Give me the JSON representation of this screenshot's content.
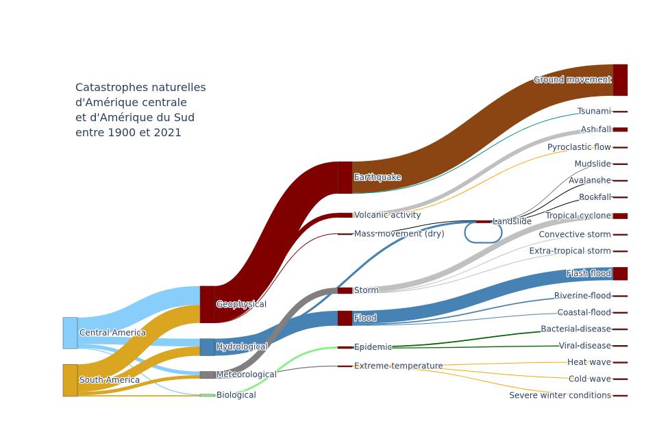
{
  "chart_data": {
    "type": "sankey",
    "title_lines": [
      "Catastrophes naturelles",
      "d'Amérique centrale",
      "et d'Amérique du Sud",
      "entre 1900 et 2021"
    ],
    "columns": [
      [
        "Central America",
        "South America"
      ],
      [
        "Geophysical",
        "Hydrological",
        "Meteorological",
        "Biological"
      ],
      [
        "Earthquake",
        "Volcanic activity",
        "Mass movement (dry)",
        "Storm",
        "Flood",
        "Epidemic",
        "Extreme temperature"
      ],
      [
        "Landslide"
      ],
      [
        "Ground movement",
        "Tsunami",
        "Ash fall",
        "Pyroclastic flow",
        "Mudslide",
        "Avalanche",
        "Rockfall",
        "Tropical cyclone",
        "Convective storm",
        "Extra-tropical storm",
        "Flash flood",
        "Riverine flood",
        "Coastal flood",
        "Bacterial disease",
        "Viral disease",
        "Heat wave",
        "Cold wave",
        "Severe winter conditions"
      ]
    ],
    "node_colors": {
      "Central America": "#87cefa",
      "South America": "#daa520",
      "Geophysical": "#800000",
      "Hydrological": "#4682b4",
      "Meteorological": "#808080",
      "Biological": "#90ee90",
      "default": "#800000"
    },
    "links": [
      {
        "source": "Central America",
        "target": "Geophysical",
        "value": 61,
        "color": "#87cefa"
      },
      {
        "source": "Central America",
        "target": "Hydrological",
        "value": 25,
        "color": "#87cefa"
      },
      {
        "source": "Central America",
        "target": "Meteorological",
        "value": 12,
        "color": "#87cefa"
      },
      {
        "source": "Central America",
        "target": "Biological",
        "value": 3,
        "color": "#87cefa"
      },
      {
        "source": "South America",
        "target": "Geophysical",
        "value": 59,
        "color": "#daa520"
      },
      {
        "source": "South America",
        "target": "Hydrological",
        "value": 30,
        "color": "#daa520"
      },
      {
        "source": "South America",
        "target": "Meteorological",
        "value": 11,
        "color": "#daa520"
      },
      {
        "source": "South America",
        "target": "Biological",
        "value": 4,
        "color": "#daa520"
      },
      {
        "source": "Geophysical",
        "target": "Earthquake",
        "value": 104,
        "color": "#800000"
      },
      {
        "source": "Geophysical",
        "target": "Volcanic activity",
        "value": 15,
        "color": "#800000"
      },
      {
        "source": "Geophysical",
        "target": "Mass movement (dry)",
        "value": 1,
        "color": "#800000"
      },
      {
        "source": "Hydrological",
        "target": "Flood",
        "value": 48,
        "color": "#4682b4"
      },
      {
        "source": "Hydrological",
        "target": "Landslide",
        "value": 7,
        "color": "#4682b4"
      },
      {
        "source": "Meteorological",
        "target": "Storm",
        "value": 20,
        "color": "#808080"
      },
      {
        "source": "Meteorological",
        "target": "Extreme temperature",
        "value": 3,
        "color": "#808080"
      },
      {
        "source": "Biological",
        "target": "Epidemic",
        "value": 7,
        "color": "#90ee90"
      },
      {
        "source": "Earthquake",
        "target": "Ground movement",
        "value": 102,
        "color": "#8b4513"
      },
      {
        "source": "Earthquake",
        "target": "Tsunami",
        "value": 2,
        "color": "#008b8b"
      },
      {
        "source": "Volcanic activity",
        "target": "Ash fall",
        "value": 13,
        "color": "#c0c0c0"
      },
      {
        "source": "Volcanic activity",
        "target": "Pyroclastic flow",
        "value": 2,
        "color": "#ffa500"
      },
      {
        "source": "Mass movement (dry)",
        "target": "Landslide",
        "value": 1,
        "color": "#000000"
      },
      {
        "source": "Landslide",
        "target": "Mudslide",
        "value": 1,
        "color": "#808080"
      },
      {
        "source": "Landslide",
        "target": "Avalanche",
        "value": 1,
        "color": "#000000"
      },
      {
        "source": "Landslide",
        "target": "Rockfall",
        "value": 1,
        "color": "#000000"
      },
      {
        "source": "Landslide",
        "target": "Landslide",
        "value": 5,
        "color": "#4682b4"
      },
      {
        "source": "Storm",
        "target": "Tropical cyclone",
        "value": 18,
        "color": "#c0c0c0"
      },
      {
        "source": "Storm",
        "target": "Convective storm",
        "value": 1,
        "color": "#c0c0c0"
      },
      {
        "source": "Storm",
        "target": "Extra-tropical storm",
        "value": 1,
        "color": "#c0c0c0"
      },
      {
        "source": "Flood",
        "target": "Flash flood",
        "value": 42,
        "color": "#4682b4"
      },
      {
        "source": "Flood",
        "target": "Riverine flood",
        "value": 4,
        "color": "#4682b4"
      },
      {
        "source": "Flood",
        "target": "Coastal flood",
        "value": 2,
        "color": "#4682b4"
      },
      {
        "source": "Epidemic",
        "target": "Bacterial disease",
        "value": 4,
        "color": "#006400"
      },
      {
        "source": "Epidemic",
        "target": "Viral disease",
        "value": 3,
        "color": "#006400"
      },
      {
        "source": "Extreme temperature",
        "target": "Heat wave",
        "value": 1,
        "color": "#ffa500"
      },
      {
        "source": "Extreme temperature",
        "target": "Cold wave",
        "value": 1,
        "color": "#ffa500"
      },
      {
        "source": "Extreme temperature",
        "target": "Severe winter conditions",
        "value": 1,
        "color": "#ffa500"
      }
    ]
  }
}
